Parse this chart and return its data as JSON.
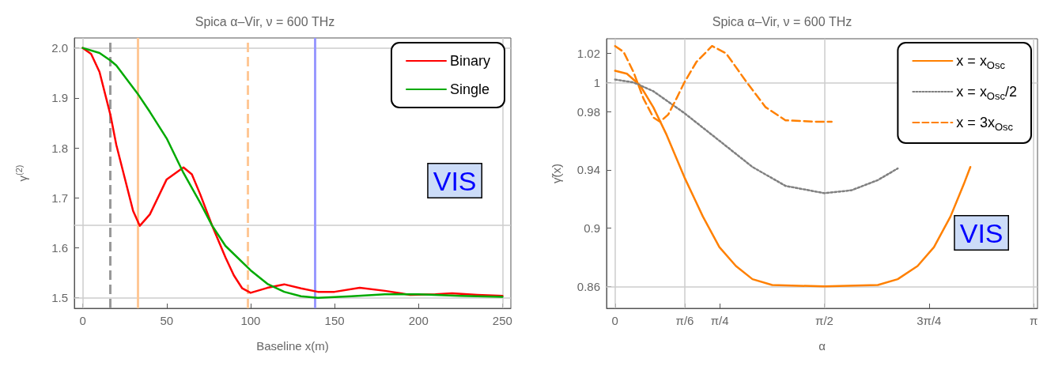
{
  "chart_data": [
    {
      "type": "line",
      "title": "Spica α–Vir, ν = 600 THz",
      "xlabel": "Baseline x(m)",
      "ylabel": "γ$^{(2)}$",
      "xlim": [
        -5,
        255
      ],
      "xticks": [
        0,
        50,
        100,
        150,
        200,
        250
      ],
      "ylim": [
        1.479,
        2.02
      ],
      "yticks": [
        1.5,
        1.6,
        1.7,
        1.8,
        1.9,
        {
          "value": 2,
          "label": "2.0"
        }
      ],
      "grid": false,
      "legend": "top right",
      "marker": "none",
      "annotations": [
        "VIS"
      ],
      "series": [
        {
          "name": "Binary",
          "color": "#ff0000",
          "line_style": "solid",
          "x": [
            0,
            5,
            10,
            16.5,
            20,
            25,
            30,
            34,
            40,
            50,
            60,
            65,
            70,
            77,
            85,
            90,
            95,
            100,
            110,
            120,
            130,
            140,
            150,
            165,
            180,
            195,
            210,
            220,
            235,
            250
          ],
          "values": [
            2.0,
            1.988,
            1.952,
            1.866,
            1.806,
            1.74,
            1.674,
            1.644,
            1.667,
            1.737,
            1.761,
            1.747,
            1.707,
            1.645,
            1.581,
            1.545,
            1.519,
            1.51,
            1.52,
            1.527,
            1.519,
            1.512,
            1.512,
            1.52,
            1.514,
            1.506,
            1.507,
            1.509,
            1.506,
            1.504
          ]
        },
        {
          "name": "Single",
          "color": "#00aa00",
          "line_style": "solid",
          "x": [
            0,
            10,
            16.5,
            20,
            32.6,
            40,
            50,
            60,
            70,
            77,
            85,
            100,
            110,
            120,
            130,
            140,
            160,
            180,
            200,
            225,
            250
          ],
          "values": [
            2.0,
            1.99,
            1.975,
            1.965,
            1.909,
            1.872,
            1.819,
            1.75,
            1.69,
            1.645,
            1.604,
            1.555,
            1.528,
            1.512,
            1.503,
            1.5,
            1.503,
            1.507,
            1.507,
            1.504,
            1.502
          ]
        }
      ],
      "ref_lines": [
        {
          "axis": "y",
          "value": 2.0,
          "color": "#cccccc",
          "line_style": "solid"
        },
        {
          "axis": "y",
          "value": 1.645,
          "color": "#cccccc",
          "line_style": "solid"
        },
        {
          "axis": "y",
          "value": 1.5,
          "color": "#cccccc",
          "line_style": "solid"
        },
        {
          "axis": "x",
          "value": 0,
          "color": "#cccccc",
          "line_style": "solid"
        },
        {
          "axis": "x",
          "value": 250,
          "color": "#cccccc",
          "line_style": "solid"
        },
        {
          "axis": "x",
          "value": 16.5,
          "color": "#999999",
          "line_style": "dashed"
        },
        {
          "axis": "x",
          "value": 32.6,
          "color": "#ffc896",
          "line_style": "solid"
        },
        {
          "axis": "x",
          "value": 98.5,
          "color": "#ffc896",
          "line_style": "dashed"
        },
        {
          "axis": "x",
          "value": 138.5,
          "color": "#9999ff",
          "line_style": "solid"
        }
      ]
    },
    {
      "type": "line",
      "title": "Spica α–Vir, ν = 600 THz",
      "xlabel": "α",
      "ylabel": "γ̃(x)",
      "xlim": [
        -0.064,
        3.17
      ],
      "xticks": [
        0,
        {
          "value": 0.5236,
          "label": "π/6"
        },
        {
          "value": 0.7854,
          "label": "π/4"
        },
        {
          "value": 1.5708,
          "label": "π/2"
        },
        {
          "value": 2.3562,
          "label": "3π/4"
        },
        {
          "value": 3.1416,
          "label": "π"
        }
      ],
      "ylim": [
        0.845,
        1.03
      ],
      "yticks": [
        0.86,
        0.9,
        0.94,
        0.98,
        1,
        1.02
      ],
      "grid": false,
      "legend": "top right",
      "marker": "none",
      "annotations": [
        "VIS"
      ],
      "series": [
        {
          "name": "x = x$_{Osc}$",
          "color": "#ff8000",
          "line_style": "solid",
          "x": [
            0,
            0.089,
            0.188,
            0.287,
            0.387,
            0.52,
            0.659,
            0.783,
            0.907,
            1.031,
            1.179,
            1.571,
            1.972,
            2.121,
            2.27,
            2.393,
            2.517,
            2.616,
            2.666
          ],
          "values": [
            1.008,
            1.006,
            0.998,
            0.983,
            0.964,
            0.935,
            0.908,
            0.887,
            0.874,
            0.865,
            0.861,
            0.86,
            0.861,
            0.865,
            0.874,
            0.887,
            0.908,
            0.93,
            0.942
          ]
        },
        {
          "name": "x = x$_{Osc}$/2",
          "color": "#808080",
          "line_style": "dotted",
          "x": [
            0,
            0.139,
            0.287,
            0.52,
            0.783,
            1.031,
            1.279,
            1.571,
            1.774,
            1.972,
            2.121
          ],
          "values": [
            1.002,
            1.0,
            0.994,
            0.979,
            0.96,
            0.942,
            0.929,
            0.924,
            0.926,
            0.933,
            0.941
          ]
        },
        {
          "name": "x = 3x$_{Osc}$",
          "color": "#ff8000",
          "line_style": "dashed",
          "x": [
            0,
            0.064,
            0.139,
            0.213,
            0.287,
            0.337,
            0.399,
            0.461,
            0.52,
            0.61,
            0.728,
            0.833,
            0.981,
            1.13,
            1.279,
            1.526,
            1.625
          ],
          "values": [
            1.025,
            1.021,
            1.007,
            0.989,
            0.976,
            0.973,
            0.978,
            0.989,
            1.0,
            1.014,
            1.025,
            1.02,
            1.001,
            0.983,
            0.974,
            0.973,
            0.973
          ]
        }
      ],
      "ref_lines": [
        {
          "axis": "y",
          "value": 1,
          "color": "#cccccc",
          "line_style": "solid"
        },
        {
          "axis": "y",
          "value": 0.86,
          "color": "#cccccc",
          "line_style": "solid"
        },
        {
          "axis": "x",
          "value": 0,
          "color": "#cccccc",
          "line_style": "solid"
        },
        {
          "axis": "x",
          "value": 0.5236,
          "color": "#cccccc",
          "line_style": "solid"
        },
        {
          "axis": "x",
          "value": 1.5708,
          "color": "#cccccc",
          "line_style": "solid"
        },
        {
          "axis": "x",
          "value": 3.1416,
          "color": "#cccccc",
          "line_style": "solid"
        }
      ]
    }
  ]
}
